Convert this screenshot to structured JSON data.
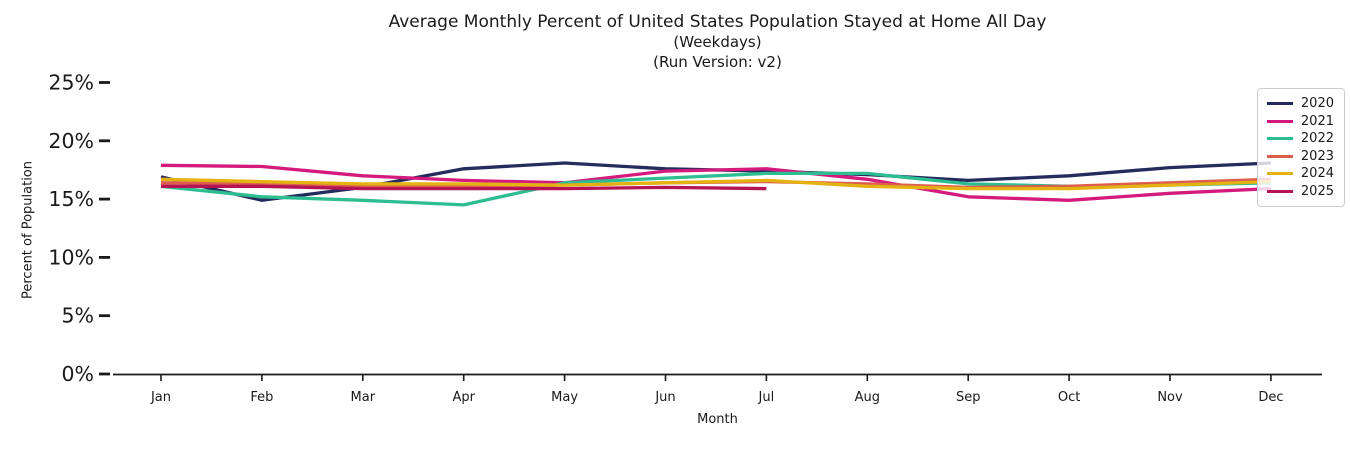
{
  "title": {
    "line1": "Average Monthly Percent of United States Population Stayed at Home All Day",
    "line2": "(Weekdays)",
    "line3": "(Run Version: v2)"
  },
  "axes": {
    "xlabel": "Month",
    "ylabel": "Percent of Population",
    "x_ticks": [
      "Jan",
      "Feb",
      "Mar",
      "Apr",
      "May",
      "Jun",
      "Jul",
      "Aug",
      "Sep",
      "Oct",
      "Nov",
      "Dec"
    ],
    "y_ticks": [
      "0%",
      "5%",
      "10%",
      "15%",
      "20%",
      "25%"
    ],
    "y_tick_values": [
      0,
      5,
      10,
      15,
      20,
      25
    ],
    "text_color": "#1a1a1a",
    "axis_color": "#1a1a1a"
  },
  "legend": {
    "entries": [
      {
        "label": "2020",
        "color": "#242c5e"
      },
      {
        "label": "2021",
        "color": "#d41a7d"
      },
      {
        "label": "2022",
        "color": "#2dbd90"
      },
      {
        "label": "2023",
        "color": "#dc5e4e"
      },
      {
        "label": "2024",
        "color": "#e4b313"
      },
      {
        "label": "2025",
        "color": "#b41354"
      }
    ]
  },
  "chart_data": {
    "type": "line",
    "title": "Average Monthly Percent of United States Population Stayed at Home All Day (Weekdays) (Run Version: v2)",
    "xlabel": "Month",
    "ylabel": "Percent of Population",
    "x": [
      "Jan",
      "Feb",
      "Mar",
      "Apr",
      "May",
      "Jun",
      "Jul",
      "Aug",
      "Sep",
      "Oct",
      "Nov",
      "Dec"
    ],
    "ylim": [
      0,
      26.5
    ],
    "y_tick_values": [
      0,
      5,
      10,
      15,
      20,
      25
    ],
    "unit": "%",
    "grid": false,
    "legend_position": "upper right",
    "series": [
      {
        "name": "2020",
        "color": "#242c5e",
        "values": [
          16.9,
          14.9,
          16.0,
          17.6,
          18.1,
          17.6,
          17.4,
          17.1,
          16.6,
          17.0,
          17.7,
          18.1
        ]
      },
      {
        "name": "2021",
        "color": "#d41a7d",
        "values": [
          17.9,
          17.8,
          17.0,
          16.6,
          16.4,
          17.4,
          17.6,
          16.7,
          15.2,
          14.9,
          15.5,
          15.9
        ]
      },
      {
        "name": "2022",
        "color": "#2dbd90",
        "values": [
          16.1,
          15.2,
          14.9,
          14.5,
          16.4,
          16.8,
          17.2,
          17.2,
          16.3,
          16.1,
          16.2,
          16.4
        ]
      },
      {
        "name": "2023",
        "color": "#dc5e4e",
        "values": [
          16.4,
          16.3,
          16.1,
          16.1,
          16.2,
          16.4,
          16.5,
          16.3,
          16.0,
          16.1,
          16.4,
          16.7
        ]
      },
      {
        "name": "2024",
        "color": "#e4b313",
        "values": [
          16.7,
          16.5,
          16.3,
          16.3,
          16.2,
          16.4,
          16.6,
          16.1,
          15.9,
          15.9,
          16.2,
          16.5
        ]
      },
      {
        "name": "2025",
        "color": "#b41354",
        "values": [
          16.1,
          16.1,
          15.9,
          15.9,
          15.9,
          16.0,
          15.9,
          null,
          null,
          null,
          null,
          null
        ]
      }
    ]
  }
}
